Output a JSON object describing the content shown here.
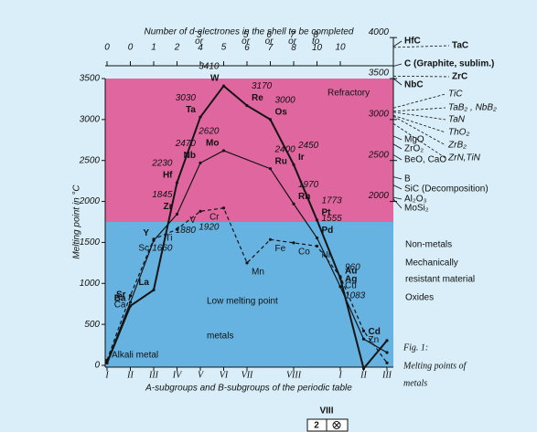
{
  "chart_data": {
    "type": "line",
    "xlabel": "A-subgroups and B-subgroups of the periodic table",
    "x2label": "Number of d-electrones in the shell to be completed",
    "ylabel": "Melting point in °C",
    "xlim": [
      0,
      12
    ],
    "xticks": [
      {
        "value": 0,
        "label": "I"
      },
      {
        "value": 1,
        "label": "II"
      },
      {
        "value": 2,
        "label": "III"
      },
      {
        "value": 3,
        "label": "IV"
      },
      {
        "value": 4,
        "label": "V"
      },
      {
        "value": 5,
        "label": "VI"
      },
      {
        "value": 6,
        "label": "VII"
      },
      {
        "value": 8,
        "label": "VIII"
      },
      {
        "value": 10,
        "label": "I"
      },
      {
        "value": 11,
        "label": "II"
      },
      {
        "value": 12,
        "label": "III"
      }
    ],
    "x2ticks": [
      0,
      {
        "value": 1,
        "label": "0"
      },
      {
        "value": 2,
        "label": "1"
      },
      {
        "value": 3,
        "label": "2"
      },
      {
        "value": 4,
        "label": "3 or 4"
      },
      {
        "value": 5,
        "label": "5"
      },
      {
        "value": 6,
        "label": "5 or 6"
      },
      {
        "value": 7,
        "label": "6 or 7"
      },
      {
        "value": 8,
        "label": "7 or 8"
      },
      {
        "value": 9,
        "label": "8 to 10"
      },
      {
        "value": 10,
        "label": "10"
      }
    ],
    "ylim": [
      0,
      3500
    ],
    "yticks": [
      0,
      500,
      1000,
      1500,
      2000,
      2500,
      3000,
      3500
    ],
    "y2lim": [
      2000,
      4000
    ],
    "y2ticks": [
      2000,
      2500,
      3000,
      3500,
      4000
    ],
    "regions": [
      {
        "label": "Refractory",
        "from": 1750,
        "to": 3500,
        "color": "#e066a0"
      },
      {
        "label": "Low melting point",
        "sublabel": "metals",
        "from": 0,
        "to": 1750,
        "color": "#66b3e2"
      }
    ],
    "annotation": "Alkali metal",
    "series": [
      {
        "color": "#141414",
        "dash": false,
        "width": 2,
        "x": [
          0,
          1,
          2,
          3,
          4,
          5,
          6,
          7,
          8,
          9,
          10,
          11,
          12
        ],
        "values": [
          28,
          725,
          920,
          2230,
          3030,
          3410,
          3170,
          3000,
          2450,
          1773,
          1063,
          -39,
          303
        ],
        "point_labels": [
          null,
          "Ba",
          "La",
          "Hf",
          "Ta",
          "W",
          "Re",
          "Os",
          "Ir",
          "Pt",
          "Au",
          null,
          null
        ],
        "value_labels": [
          null,
          null,
          null,
          "2230",
          "3030",
          "3410",
          "3170",
          "3000",
          "2450",
          "1773",
          null,
          null,
          null
        ]
      },
      {
        "color": "#141414",
        "dash": false,
        "width": 1.2,
        "x": [
          0,
          1,
          2,
          3,
          4,
          5,
          7,
          8,
          9,
          10,
          11,
          12
        ],
        "values": [
          39,
          770,
          1523,
          1845,
          2470,
          2620,
          2400,
          1970,
          1555,
          960,
          321,
          156
        ],
        "point_labels": [
          null,
          "Sr",
          "Y",
          "Zr",
          "Nb",
          "Mo",
          "Ru",
          "Rh",
          "Pd",
          "Ag",
          "Cd",
          null
        ],
        "value_labels": [
          null,
          null,
          null,
          "1845",
          "2470",
          "2620",
          "2400",
          "1970",
          "1555",
          "960",
          null,
          null
        ]
      },
      {
        "color": "#141414",
        "dash": true,
        "width": 1.2,
        "x": [
          0,
          1,
          2,
          3,
          4,
          5,
          6,
          7,
          8,
          9,
          10,
          11,
          12
        ],
        "values": [
          63,
          850,
          1540,
          1660,
          1880,
          1920,
          1250,
          1535,
          1495,
          1455,
          1083,
          420,
          30
        ],
        "point_labels": [
          null,
          "Ca",
          "Sc",
          "Ti",
          "V",
          "Cr",
          "Mn",
          "Fe",
          "Co",
          "Ni",
          "Cu",
          "Zn",
          null
        ],
        "value_labels": [
          null,
          null,
          null,
          "1660",
          "1880",
          "1920",
          null,
          null,
          null,
          null,
          "1083",
          null,
          null
        ]
      }
    ],
    "compounds": [
      {
        "label": "HfC",
        "value": 3890
      },
      {
        "label": "TaC",
        "value": 3880
      },
      {
        "label": "C (Graphite, sublim.)",
        "value": 3650
      },
      {
        "label": "NbC",
        "value": 3500
      },
      {
        "label": "ZrC",
        "value": 3530
      },
      {
        "label": "TiC",
        "value": 3140
      },
      {
        "label": "TaB₂ , NbB₂",
        "value": 3100
      },
      {
        "label": "TaN",
        "value": 3090
      },
      {
        "label": "ThO₂",
        "value": 3050
      },
      {
        "label": "ZrB₂",
        "value": 3040
      },
      {
        "label": "ZrN,TiN",
        "value": 2950
      },
      {
        "label": "MgO",
        "value": 2800
      },
      {
        "label": "ZrO₂",
        "value": 2700
      },
      {
        "label": "BeO, CaO",
        "value": 2570
      },
      {
        "label": "B",
        "value": 2300
      },
      {
        "label": "SiC (Decomposition)",
        "value": 2200
      },
      {
        "label": "Al₂O₃",
        "value": 2050
      },
      {
        "label": "MoSi₂",
        "value": 2030
      }
    ],
    "notes": [
      "Non-metals",
      "Mechanically",
      "resistant material",
      "Oxides"
    ],
    "caption": [
      "Fig. 1:",
      "Melting points of",
      "metals"
    ]
  },
  "footer": {
    "group": "VIII",
    "period": "2"
  }
}
